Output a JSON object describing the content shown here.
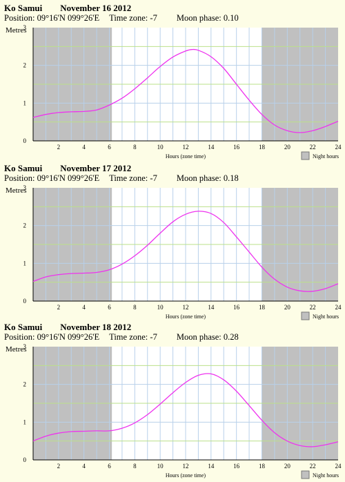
{
  "colors": {
    "background": "#fdfde6",
    "night_shade": "#c0c0c0",
    "grid": "#b8d0ea",
    "grid_horizontal": "#bbe08a",
    "curve": "#ee33ee",
    "axis": "#000000"
  },
  "chart_data": [
    {
      "type": "line",
      "location": "Ko Samui",
      "date": "November 16 2012",
      "position_label": "Position:",
      "position": "09°16'N 099°26'E",
      "timezone_label": "Time zone:",
      "timezone": "-7",
      "moonphase_label": "Moon phase:",
      "moonphase": "0.10",
      "ylabel": "Metres",
      "xlabel": "Hours (zone time)",
      "legend": "Night hours",
      "xlim": [
        0,
        24
      ],
      "ylim": [
        0,
        3
      ],
      "xticks": [
        2,
        4,
        6,
        8,
        10,
        12,
        14,
        16,
        18,
        20,
        22,
        24
      ],
      "yticks": [
        0,
        1,
        2,
        3
      ],
      "night_hours": [
        [
          0,
          6.2
        ],
        [
          18,
          24
        ]
      ],
      "x": [
        0,
        1,
        2,
        3,
        4,
        5,
        6,
        7,
        8,
        9,
        10,
        11,
        12,
        12.5,
        13,
        14,
        15,
        16,
        17,
        18,
        19,
        20,
        21,
        22,
        23,
        24
      ],
      "values": [
        0.62,
        0.7,
        0.75,
        0.77,
        0.78,
        0.82,
        0.95,
        1.13,
        1.38,
        1.67,
        1.97,
        2.22,
        2.38,
        2.42,
        2.4,
        2.23,
        1.92,
        1.5,
        1.08,
        0.7,
        0.42,
        0.27,
        0.22,
        0.27,
        0.38,
        0.52
      ]
    },
    {
      "type": "line",
      "location": "Ko Samui",
      "date": "November 17 2012",
      "position_label": "Position:",
      "position": "09°16'N 099°26'E",
      "timezone_label": "Time zone:",
      "timezone": "-7",
      "moonphase_label": "Moon phase:",
      "moonphase": "0.18",
      "ylabel": "Metres",
      "xlabel": "Hours (zone time)",
      "legend": "Night hours",
      "xlim": [
        0,
        24
      ],
      "ylim": [
        0,
        3
      ],
      "xticks": [
        2,
        4,
        6,
        8,
        10,
        12,
        14,
        16,
        18,
        20,
        22,
        24
      ],
      "yticks": [
        0,
        1,
        2,
        3
      ],
      "night_hours": [
        [
          0,
          6.2
        ],
        [
          18,
          24
        ]
      ],
      "x": [
        0,
        1,
        2,
        3,
        4,
        5,
        6,
        7,
        8,
        9,
        10,
        11,
        12,
        13,
        14,
        15,
        16,
        17,
        18,
        19,
        20,
        21,
        22,
        23,
        24
      ],
      "values": [
        0.52,
        0.64,
        0.7,
        0.73,
        0.74,
        0.76,
        0.83,
        0.98,
        1.2,
        1.48,
        1.8,
        2.1,
        2.3,
        2.38,
        2.32,
        2.08,
        1.7,
        1.3,
        0.9,
        0.58,
        0.37,
        0.27,
        0.26,
        0.33,
        0.46
      ]
    },
    {
      "type": "line",
      "location": "Ko Samui",
      "date": "November 18 2012",
      "position_label": "Position:",
      "position": "09°16'N 099°26'E",
      "timezone_label": "Time zone:",
      "timezone": "-7",
      "moonphase_label": "Moon phase:",
      "moonphase": "0.28",
      "ylabel": "Metres",
      "xlabel": "Hours (zone time)",
      "legend": "Night hours",
      "xlim": [
        0,
        24
      ],
      "ylim": [
        0,
        3
      ],
      "xticks": [
        2,
        4,
        6,
        8,
        10,
        12,
        14,
        16,
        18,
        20,
        22,
        24
      ],
      "yticks": [
        0,
        1,
        2,
        3
      ],
      "night_hours": [
        [
          0,
          6.2
        ],
        [
          18,
          24
        ]
      ],
      "x": [
        0,
        1,
        2,
        3,
        4,
        5,
        6,
        7,
        8,
        9,
        10,
        11,
        12,
        13,
        14,
        15,
        16,
        17,
        18,
        19,
        20,
        21,
        22,
        23,
        24
      ],
      "values": [
        0.5,
        0.63,
        0.71,
        0.75,
        0.76,
        0.77,
        0.77,
        0.84,
        0.98,
        1.2,
        1.48,
        1.78,
        2.05,
        2.24,
        2.28,
        2.12,
        1.82,
        1.44,
        1.05,
        0.72,
        0.5,
        0.38,
        0.35,
        0.4,
        0.48
      ]
    }
  ]
}
